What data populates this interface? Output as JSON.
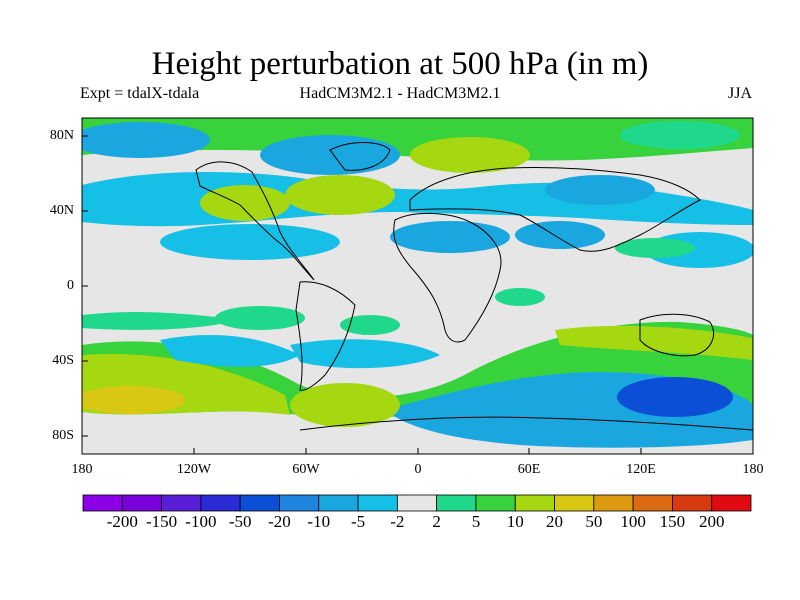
{
  "title": "Height perturbation at 500 hPa (in m)",
  "experiment": "Expt = tdalX-tdala",
  "model": "HadCM3M2.1 - HadCM3M2.1",
  "season": "JJA",
  "lat_ticks": [
    "80N",
    "40N",
    "0",
    "40S",
    "80S"
  ],
  "lon_ticks": [
    "180",
    "120W",
    "60W",
    "0",
    "60E",
    "120E",
    "180"
  ],
  "colorbar": {
    "labels": [
      "-200",
      "-150",
      "-100",
      "-50",
      "-20",
      "-10",
      "-5",
      "-2",
      "2",
      "5",
      "10",
      "20",
      "50",
      "100",
      "150",
      "200"
    ],
    "colors": [
      "#8c00e6",
      "#7a00dc",
      "#5a1ed8",
      "#2a2ad6",
      "#0b4fd6",
      "#1f86e0",
      "#1aa7e0",
      "#16bfe6",
      "#e6e6e6",
      "#1fd88c",
      "#37d23c",
      "#a6d812",
      "#d8c814",
      "#dc9a10",
      "#dc6a10",
      "#d83a10",
      "#e00a10"
    ]
  }
}
